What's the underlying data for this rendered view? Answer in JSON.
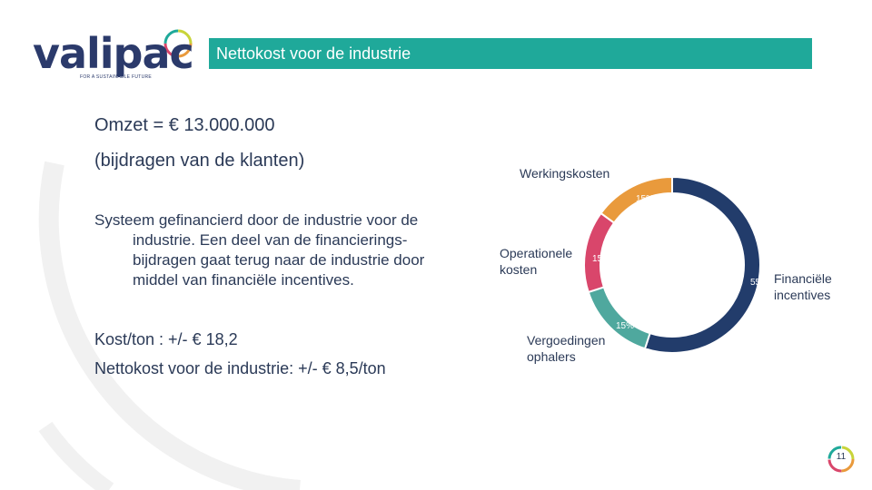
{
  "logo": {
    "word": "valipac",
    "tagline": "FOR A SUSTAINABLE FUTURE"
  },
  "title_bar": {
    "title": "Nettokost voor de industrie",
    "color": "#1fa99a"
  },
  "revenue": {
    "line": "Omzet = € 13.000.000",
    "sub": "(bijdragen van de klanten)"
  },
  "body": {
    "first_line": "Systeem gefinancierd door de industrie voor de",
    "rest_lines": [
      "industrie. Een deel van de financierings-",
      "bijdragen gaat terug naar de industrie door",
      "middel van financiële incentives."
    ]
  },
  "cost_per_ton": "Kost/ton : +/- € 18,2",
  "net_cost": "Nettokost voor de industrie: +/- € 8,5/ton",
  "chart_data": {
    "type": "pie",
    "donut": true,
    "slices": [
      {
        "label": "Financiële incentives",
        "value": 55,
        "display": "55%",
        "color": "#223c6b"
      },
      {
        "label": "Vergoedingen ophalers",
        "value": 15,
        "display": "15%",
        "color": "#4fa89e"
      },
      {
        "label": "Operationele kosten",
        "value": 15,
        "display": "15%",
        "color": "#d9466b"
      },
      {
        "label": "Werkingskosten",
        "value": 15,
        "display": "15%",
        "color": "#e99a3c"
      }
    ]
  },
  "page_number": "11"
}
